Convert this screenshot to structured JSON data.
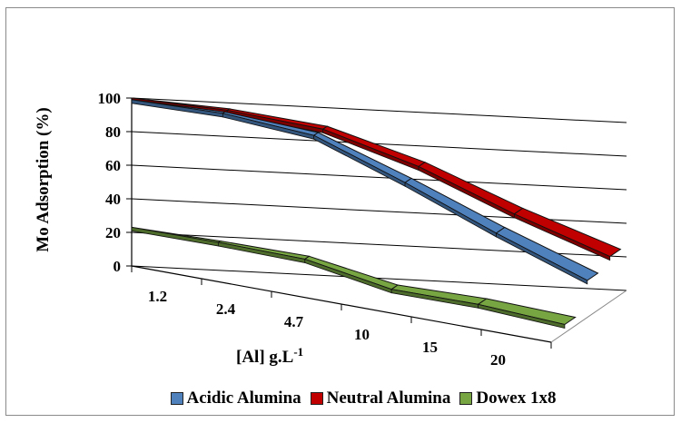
{
  "chart_data": {
    "type": "line",
    "style": "3d-ribbon",
    "categories": [
      "1.2",
      "2.4",
      "4.7",
      "10",
      "15",
      "20"
    ],
    "xlabel": "[Al] g.L",
    "xlabel_superscript": "-1",
    "ylabel": "Mo Adsorption (%)",
    "ylim": [
      0,
      100
    ],
    "yticks": [
      "0",
      "20",
      "40",
      "60",
      "80",
      "100"
    ],
    "grid": true,
    "legend_position": "bottom",
    "series": [
      {
        "name": "Acidic Alumina",
        "color": "#4f81bd",
        "values": [
          99,
          97,
          90,
          68,
          44,
          22
        ]
      },
      {
        "name": "Neutral Alumina",
        "color": "#c00000",
        "values": [
          100,
          97,
          90,
          72,
          48,
          27
        ]
      },
      {
        "name": "Dowex 1x8",
        "color": "#77a542",
        "values": [
          23,
          22,
          20,
          10,
          9,
          5
        ]
      }
    ]
  }
}
